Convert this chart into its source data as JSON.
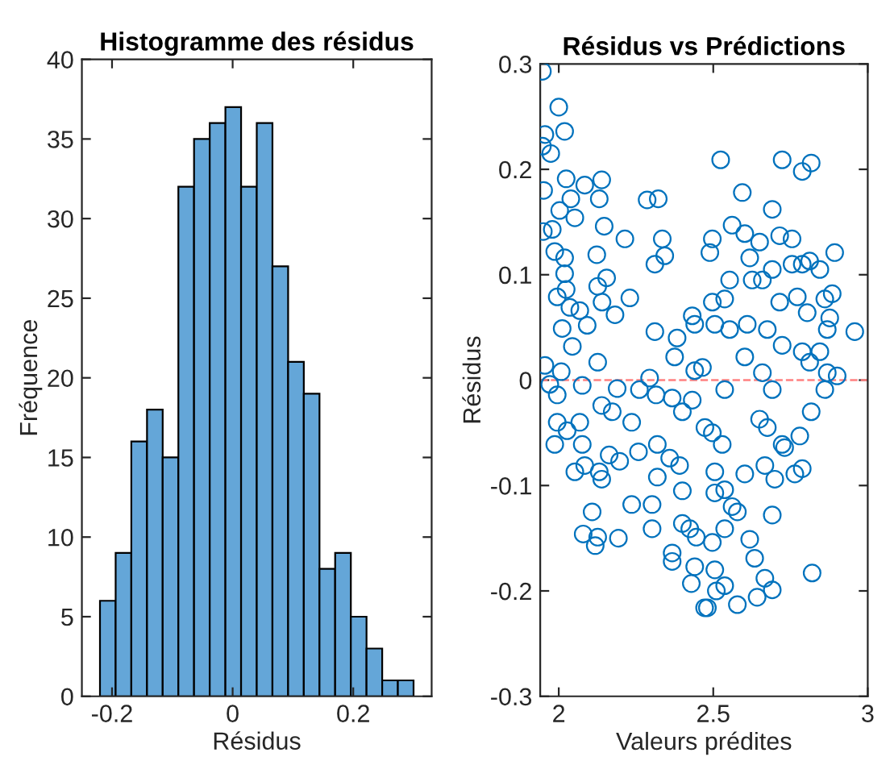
{
  "chart_data": [
    {
      "type": "histogram",
      "title": "Histogramme des résidus",
      "xlabel": "Résidus",
      "ylabel": "Fréquence",
      "color": "#64a6d8",
      "bins": [
        -0.22,
        -0.194,
        -0.168,
        -0.142,
        -0.116,
        -0.09,
        -0.064,
        -0.038,
        -0.012,
        0.014,
        0.04,
        0.066,
        0.092,
        0.118,
        0.144,
        0.17,
        0.196,
        0.222,
        0.248,
        0.274,
        0.3
      ],
      "values": [
        6,
        9,
        16,
        18,
        15,
        32,
        35,
        36,
        37,
        32,
        36,
        27,
        21,
        19,
        8,
        9,
        5,
        3,
        1,
        1
      ],
      "xlim": [
        -0.25,
        0.33
      ],
      "xticks": [
        -0.2,
        0,
        0.2
      ],
      "ylim": [
        0,
        40
      ],
      "yticks": [
        0,
        5,
        10,
        15,
        20,
        25,
        30,
        35,
        40
      ],
      "grid": false
    },
    {
      "type": "scatter",
      "title": "Résidus vs Prédictions",
      "xlabel": "Valeurs prédites",
      "ylabel": "Résidus",
      "marker": "circle",
      "grid": false,
      "xlim": [
        1.94,
        3.0
      ],
      "xticks": [
        2,
        2.5,
        3
      ],
      "ylim": [
        -0.3,
        0.3
      ],
      "yticks": [
        -0.3,
        -0.2,
        -0.1,
        0,
        0.1,
        0.2,
        0.3
      ],
      "ref_lines": [
        {
          "axis": "y",
          "value": 0,
          "color": "#ff8080",
          "line_style": "dashed"
        }
      ],
      "series": [
        {
          "color": "#0072bd",
          "x": [
            1.947,
            2.0,
            1.955,
            2.019,
            1.947,
            1.974,
            2.024,
            1.951,
            2.139,
            2.084,
            2.003,
            2.039,
            2.052,
            2.131,
            1.95,
            1.979,
            2.147,
            1.987,
            2.019,
            2.123,
            2.214,
            2.019,
            2.024,
            2.126,
            2.155,
            1.995,
            2.068,
            2.036,
            2.14,
            2.23,
            2.182,
            2.011,
            2.092,
            2.044,
            2.126,
            1.955,
            2.008,
            1.971,
            2.076,
            1.995,
            2.189,
            1.995,
            2.027,
            1.987,
            2.068,
            2.076,
            2.052,
            2.084,
            2.131,
            2.139,
            2.163,
            2.173,
            2.139,
            2.197,
            2.108,
            2.079,
            2.126,
            2.118,
            2.193,
            2.236,
            2.236,
            2.261,
            2.258,
            2.294,
            2.315,
            2.319,
            2.319,
            2.302,
            2.302,
            2.286,
            2.322,
            2.335,
            2.311,
            2.343,
            2.311,
            2.375,
            2.383,
            2.367,
            2.4,
            2.359,
            2.391,
            2.4,
            2.367,
            2.367,
            2.4,
            2.424,
            2.429,
            2.432,
            2.44,
            2.44,
            2.432,
            2.445,
            2.44,
            2.472,
            2.481,
            2.489,
            2.497,
            2.561,
            2.524,
            2.497,
            2.505,
            2.465,
            2.473,
            2.497,
            2.505,
            2.529,
            2.505,
            2.537,
            2.497,
            2.505,
            2.51,
            2.537,
            2.537,
            2.553,
            2.537,
            2.553,
            2.537,
            2.578,
            2.578,
            2.561,
            2.594,
            2.602,
            2.618,
            2.626,
            2.61,
            2.602,
            2.602,
            2.618,
            2.634,
            2.642,
            2.667,
            2.691,
            2.691,
            2.65,
            2.691,
            2.715,
            2.723,
            2.755,
            2.788,
            2.817,
            2.691,
            2.715,
            2.659,
            2.675,
            2.723,
            2.659,
            2.691,
            2.65,
            2.675,
            2.667,
            2.699,
            2.723,
            2.731,
            2.764,
            2.78,
            2.788,
            2.755,
            2.788,
            2.812,
            2.772,
            2.804,
            2.788,
            2.812,
            2.817,
            2.82,
            2.845,
            2.861,
            2.877,
            2.893,
            2.885,
            2.869,
            2.869,
            2.901,
            2.861,
            2.958,
            2.845
          ],
          "values": [
            0.293,
            0.259,
            0.233,
            0.236,
            0.222,
            0.215,
            0.191,
            0.18,
            0.19,
            0.185,
            0.161,
            0.172,
            0.154,
            0.172,
            0.141,
            0.143,
            0.146,
            0.122,
            0.116,
            0.119,
            0.134,
            0.101,
            0.086,
            0.089,
            0.097,
            0.079,
            0.066,
            0.069,
            0.074,
            0.078,
            0.062,
            0.049,
            0.052,
            0.032,
            0.017,
            0.014,
            0.008,
            -0.004,
            -0.005,
            -0.014,
            -0.008,
            -0.04,
            -0.048,
            -0.061,
            -0.04,
            -0.061,
            -0.087,
            -0.081,
            -0.087,
            -0.094,
            -0.071,
            -0.03,
            -0.024,
            -0.077,
            -0.125,
            -0.146,
            -0.149,
            -0.157,
            -0.15,
            -0.118,
            -0.04,
            -0.009,
            -0.068,
            0.002,
            -0.014,
            -0.061,
            -0.092,
            -0.118,
            -0.141,
            0.171,
            0.172,
            0.134,
            0.11,
            0.118,
            0.046,
            0.022,
            0.04,
            -0.017,
            -0.03,
            -0.074,
            -0.081,
            -0.105,
            -0.164,
            -0.172,
            -0.136,
            -0.141,
            -0.193,
            0.061,
            0.053,
            0.009,
            -0.019,
            -0.149,
            -0.177,
            -0.216,
            -0.216,
            0.121,
            0.134,
            0.147,
            0.209,
            0.074,
            0.053,
            0.012,
            -0.045,
            -0.05,
            -0.087,
            -0.061,
            -0.107,
            -0.104,
            -0.154,
            -0.18,
            -0.2,
            -0.195,
            -0.141,
            0.095,
            0.077,
            0.048,
            -0.009,
            -0.213,
            -0.125,
            -0.12,
            0.178,
            0.139,
            0.116,
            0.095,
            0.053,
            0.022,
            -0.089,
            -0.151,
            -0.169,
            -0.206,
            -0.188,
            -0.199,
            -0.128,
            0.131,
            0.162,
            0.137,
            0.209,
            0.134,
            0.198,
            0.206,
            0.105,
            0.074,
            0.095,
            0.048,
            0.033,
            0.007,
            -0.009,
            -0.037,
            -0.045,
            -0.081,
            -0.094,
            -0.061,
            -0.064,
            -0.089,
            -0.053,
            -0.084,
            0.11,
            0.11,
            0.113,
            0.079,
            0.064,
            0.027,
            0.017,
            -0.03,
            -0.183,
            0.105,
            0.077,
            0.059,
            0.121,
            0.082,
            0.048,
            0.007,
            0.004,
            -0.009,
            0.046,
            0.027
          ]
        }
      ]
    }
  ]
}
